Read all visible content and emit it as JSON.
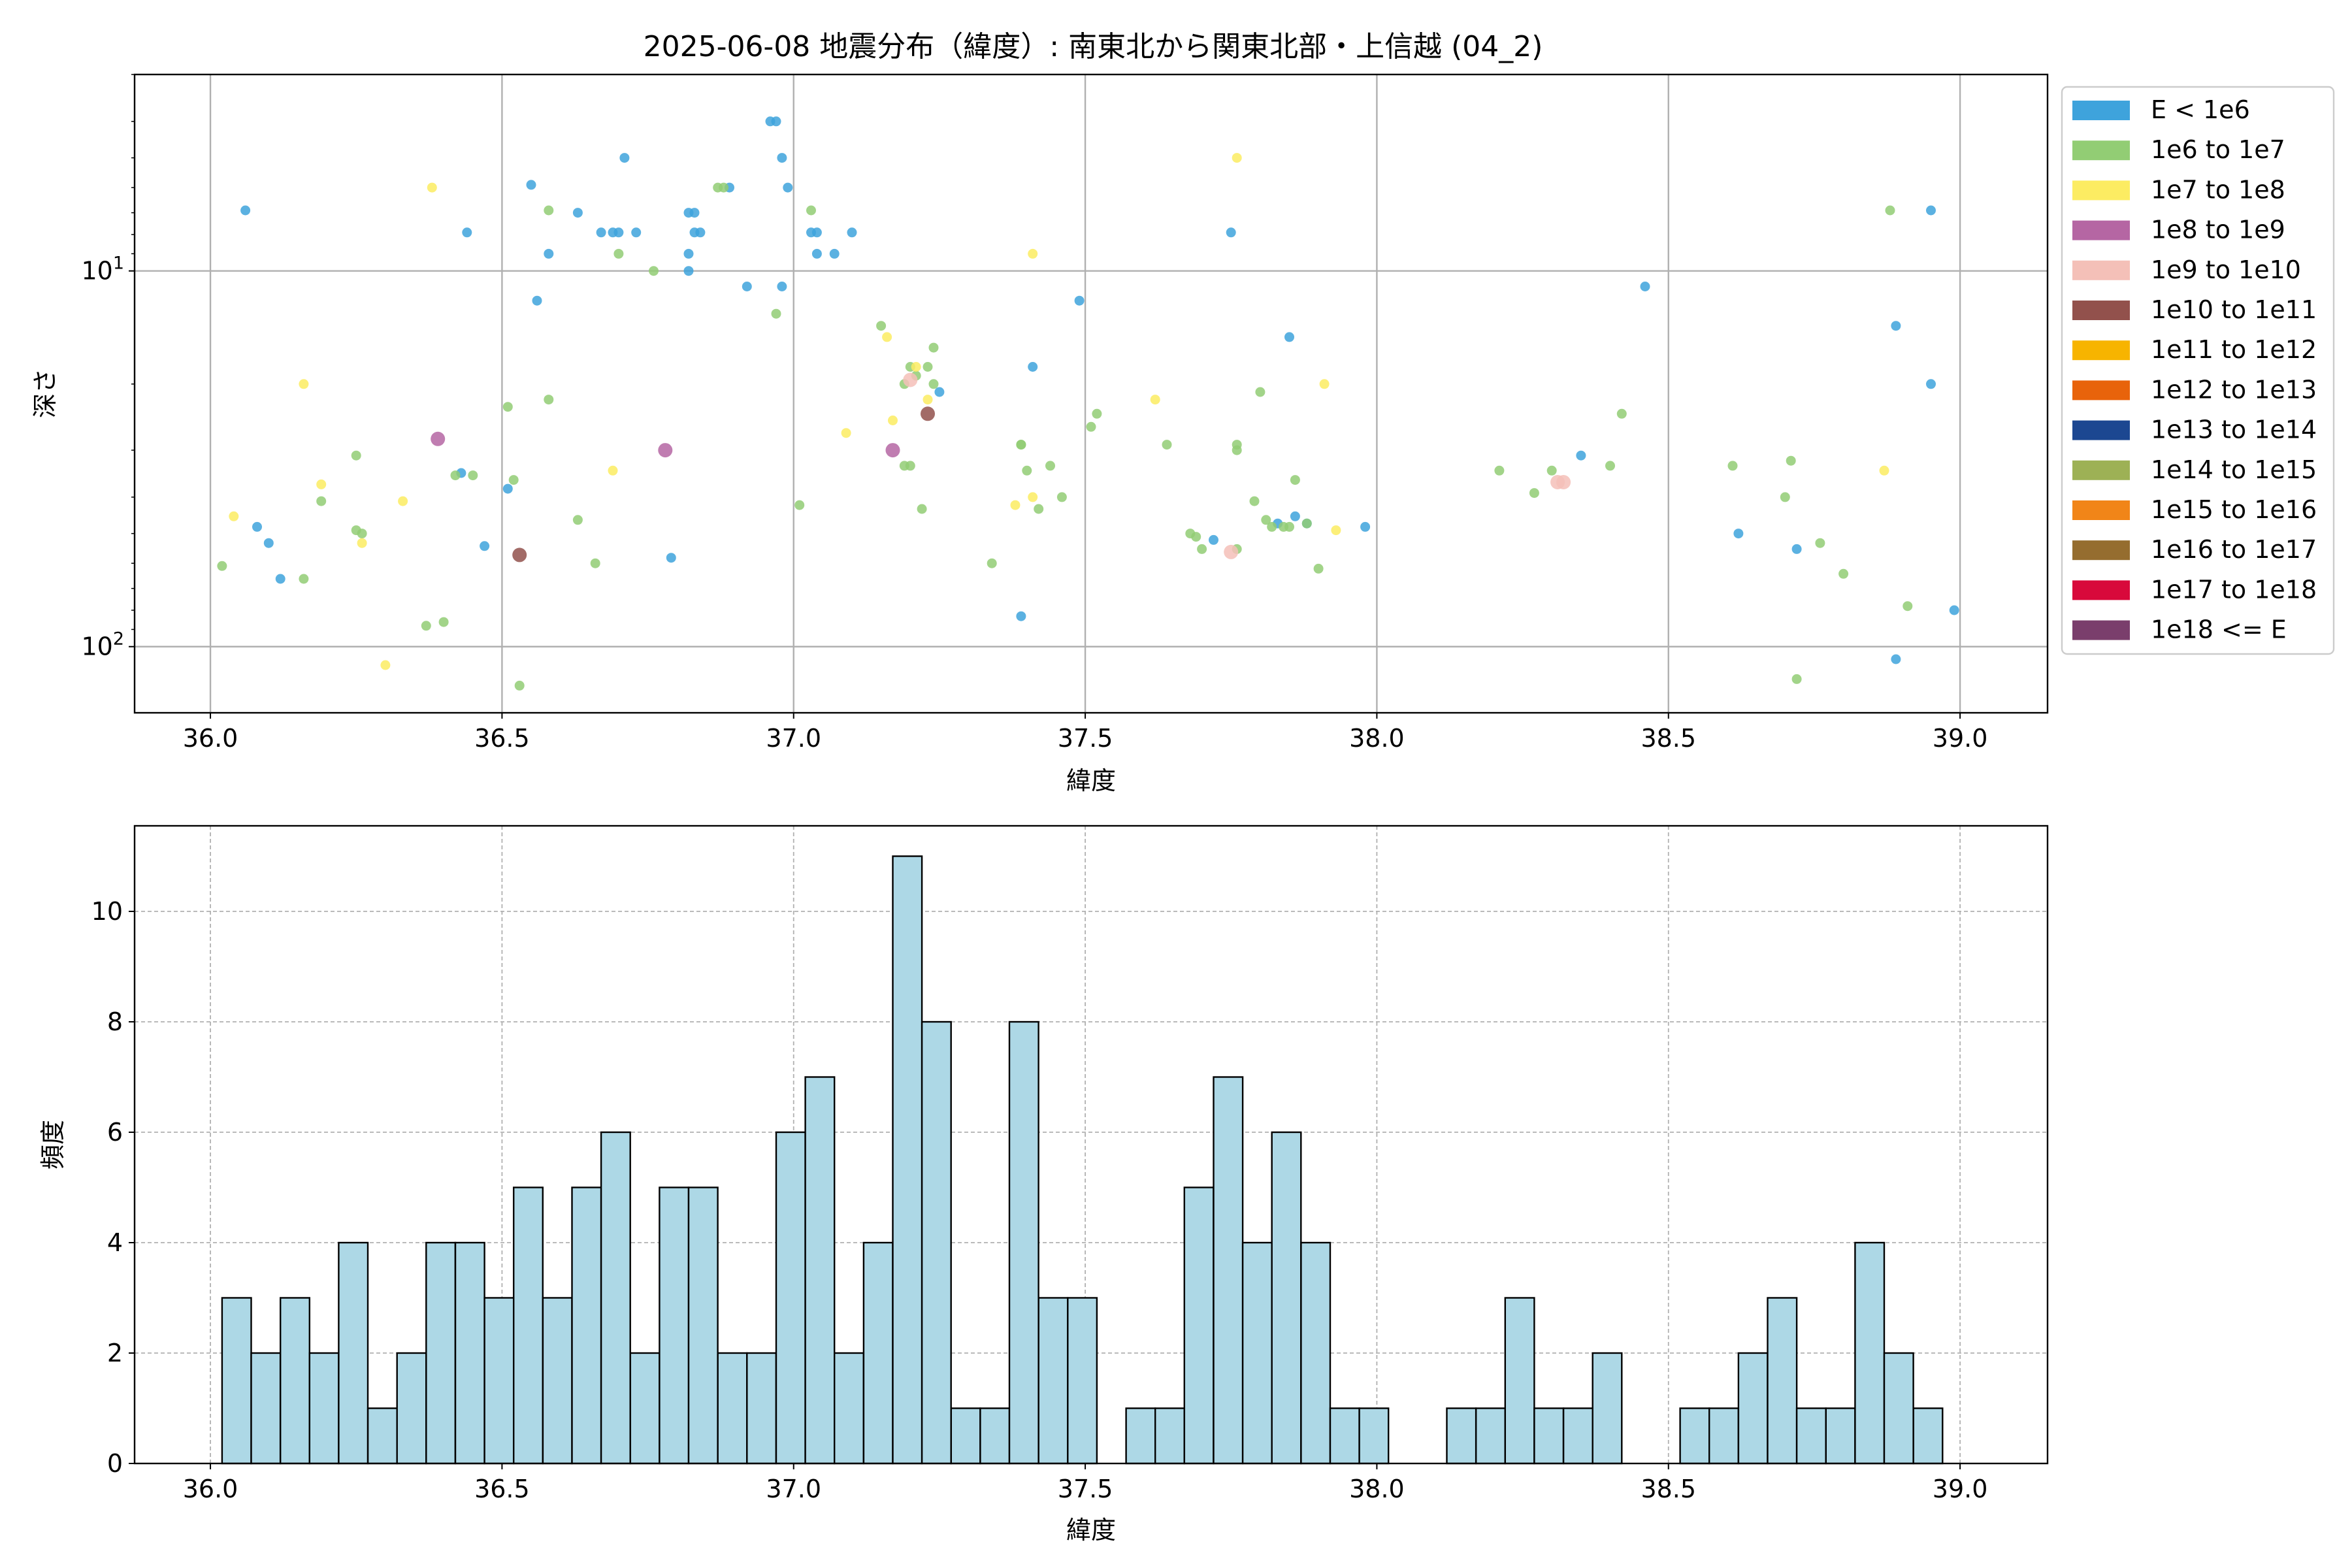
{
  "chart_data": [
    {
      "type": "scatter",
      "title": "2025-06-08 地震分布（緯度）: 南東北から関東北部・上信越 (04_2)",
      "xlabel": "緯度",
      "ylabel": "深さ",
      "xlim": [
        35.87,
        39.15
      ],
      "ylim": [
        150,
        3
      ],
      "yscale": "log",
      "y_inverted": true,
      "grid": true,
      "legend_placement": "outside-right",
      "xticks": [
        "36.0",
        "36.5",
        "37.0",
        "37.5",
        "38.0",
        "38.5",
        "39.0"
      ],
      "yticks": [
        {
          "value": 10,
          "base": "10",
          "exp": "1"
        },
        {
          "value": 100,
          "base": "10",
          "exp": "2"
        }
      ],
      "legend": [
        {
          "label": "E < 1e6",
          "color": "#3ea3dc"
        },
        {
          "label": "1e6 to 1e7",
          "color": "#92cd74"
        },
        {
          "label": "1e7 to 1e8",
          "color": "#fcec62"
        },
        {
          "label": "1e8 to 1e9",
          "color": "#b566a3"
        },
        {
          "label": "1e9 to 1e10",
          "color": "#f4c0b8"
        },
        {
          "label": "1e10 to 1e11",
          "color": "#92514c"
        },
        {
          "label": "1e11 to 1e12",
          "color": "#f7b400"
        },
        {
          "label": "1e12 to 1e13",
          "color": "#e8630b"
        },
        {
          "label": "1e13 to 1e14",
          "color": "#1c4791"
        },
        {
          "label": "1e14 to 1e15",
          "color": "#9db155"
        },
        {
          "label": "1e15 to 1e16",
          "color": "#f18518"
        },
        {
          "label": "1e16 to 1e17",
          "color": "#956d2f"
        },
        {
          "label": "1e17 to 1e18",
          "color": "#d8093b"
        },
        {
          "label": "1e18 <= E",
          "color": "#7a3e6c"
        }
      ],
      "series": [
        {
          "class": 0,
          "points": [
            [
              36.06,
              6.9
            ],
            [
              36.08,
              48
            ],
            [
              36.1,
              53
            ],
            [
              36.12,
              66
            ],
            [
              36.43,
              34.5
            ],
            [
              36.44,
              7.9
            ],
            [
              36.47,
              54
            ],
            [
              36.51,
              38
            ],
            [
              36.55,
              5.9
            ],
            [
              36.56,
              12
            ],
            [
              36.58,
              9
            ],
            [
              36.63,
              7
            ],
            [
              36.67,
              7.9
            ],
            [
              36.69,
              7.9
            ],
            [
              36.7,
              7.9
            ],
            [
              36.71,
              5
            ],
            [
              36.73,
              7.9
            ],
            [
              36.79,
              58
            ],
            [
              36.82,
              7
            ],
            [
              36.82,
              9
            ],
            [
              36.82,
              10
            ],
            [
              36.83,
              7.9
            ],
            [
              36.83,
              7
            ],
            [
              36.84,
              7.9
            ],
            [
              36.89,
              6
            ],
            [
              36.92,
              11
            ],
            [
              36.96,
              4
            ],
            [
              36.97,
              4
            ],
            [
              36.98,
              5
            ],
            [
              36.98,
              11
            ],
            [
              36.99,
              6
            ],
            [
              37.03,
              7.9
            ],
            [
              37.04,
              7.9
            ],
            [
              37.04,
              9
            ],
            [
              37.07,
              9
            ],
            [
              37.1,
              7.9
            ],
            [
              37.25,
              21
            ],
            [
              37.39,
              83
            ],
            [
              37.41,
              18
            ],
            [
              37.49,
              12
            ],
            [
              37.72,
              52
            ],
            [
              37.75,
              7.9
            ],
            [
              37.83,
              47
            ],
            [
              37.85,
              15
            ],
            [
              37.86,
              45
            ],
            [
              37.88,
              47
            ],
            [
              37.98,
              48
            ],
            [
              38.35,
              31
            ],
            [
              38.46,
              11
            ],
            [
              38.62,
              50
            ],
            [
              38.72,
              55
            ],
            [
              38.89,
              108
            ],
            [
              38.89,
              14
            ],
            [
              38.95,
              6.9
            ],
            [
              38.95,
              20
            ],
            [
              38.99,
              80
            ]
          ]
        },
        {
          "class": 1,
          "points": [
            [
              36.02,
              61
            ],
            [
              36.16,
              66
            ],
            [
              36.19,
              41
            ],
            [
              36.25,
              49
            ],
            [
              36.25,
              31
            ],
            [
              36.26,
              50
            ],
            [
              36.37,
              88
            ],
            [
              36.4,
              86
            ],
            [
              36.42,
              35
            ],
            [
              36.45,
              35
            ],
            [
              36.51,
              23
            ],
            [
              36.52,
              36
            ],
            [
              36.53,
              127
            ],
            [
              36.58,
              22
            ],
            [
              36.58,
              6.9
            ],
            [
              36.63,
              46
            ],
            [
              36.66,
              60
            ],
            [
              36.7,
              9
            ],
            [
              36.76,
              10
            ],
            [
              36.87,
              6
            ],
            [
              36.88,
              6
            ],
            [
              36.97,
              13
            ],
            [
              37.01,
              42
            ],
            [
              37.03,
              6.9
            ],
            [
              37.15,
              14
            ],
            [
              37.19,
              20
            ],
            [
              37.19,
              33
            ],
            [
              37.2,
              18
            ],
            [
              37.2,
              33
            ],
            [
              37.21,
              19
            ],
            [
              37.22,
              43
            ],
            [
              37.23,
              18
            ],
            [
              37.24,
              16
            ],
            [
              37.24,
              20
            ],
            [
              37.34,
              60
            ],
            [
              37.39,
              29
            ],
            [
              37.39,
              29
            ],
            [
              37.4,
              34
            ],
            [
              37.42,
              43
            ],
            [
              37.44,
              33
            ],
            [
              37.46,
              40
            ],
            [
              37.51,
              26
            ],
            [
              37.52,
              24
            ],
            [
              37.64,
              29
            ],
            [
              37.68,
              50
            ],
            [
              37.69,
              51
            ],
            [
              37.7,
              55
            ],
            [
              37.76,
              30
            ],
            [
              37.76,
              29
            ],
            [
              37.76,
              55
            ],
            [
              37.79,
              41
            ],
            [
              37.8,
              21
            ],
            [
              37.81,
              46
            ],
            [
              37.82,
              48
            ],
            [
              37.84,
              48
            ],
            [
              37.85,
              48
            ],
            [
              37.86,
              36
            ],
            [
              37.88,
              47
            ],
            [
              37.9,
              62
            ],
            [
              38.21,
              34
            ],
            [
              38.27,
              39
            ],
            [
              38.3,
              34
            ],
            [
              38.4,
              33
            ],
            [
              38.42,
              24
            ],
            [
              38.61,
              33
            ],
            [
              38.7,
              40
            ],
            [
              38.71,
              32
            ],
            [
              38.72,
              122
            ],
            [
              38.76,
              53
            ],
            [
              38.8,
              64
            ],
            [
              38.88,
              6.9
            ],
            [
              38.91,
              78
            ]
          ]
        },
        {
          "class": 2,
          "points": [
            [
              36.04,
              45
            ],
            [
              36.16,
              20
            ],
            [
              36.19,
              37
            ],
            [
              36.26,
              53
            ],
            [
              36.3,
              112
            ],
            [
              36.33,
              41
            ],
            [
              36.38,
              6
            ],
            [
              36.69,
              34
            ],
            [
              37.09,
              27
            ],
            [
              37.16,
              15
            ],
            [
              37.17,
              25
            ],
            [
              37.21,
              18
            ],
            [
              37.23,
              22
            ],
            [
              37.38,
              42
            ],
            [
              37.41,
              40
            ],
            [
              37.41,
              9
            ],
            [
              37.62,
              22
            ],
            [
              37.76,
              5
            ],
            [
              37.91,
              20
            ],
            [
              37.93,
              49
            ],
            [
              38.87,
              34
            ]
          ]
        },
        {
          "class": 3,
          "points": [
            [
              36.39,
              28
            ],
            [
              36.78,
              30
            ],
            [
              37.17,
              30
            ]
          ]
        },
        {
          "class": 4,
          "points": [
            [
              37.2,
              19.5
            ],
            [
              37.75,
              56
            ],
            [
              38.31,
              36.5
            ],
            [
              38.32,
              36.5
            ]
          ]
        },
        {
          "class": 5,
          "points": [
            [
              36.53,
              57
            ],
            [
              37.23,
              24
            ]
          ]
        }
      ]
    },
    {
      "type": "bar",
      "title": "",
      "xlabel": "緯度",
      "ylabel": "頻度",
      "xlim": [
        35.87,
        39.15
      ],
      "ylim": [
        0,
        11.55
      ],
      "grid": true,
      "bin_start": 36.02,
      "bin_width": 0.05,
      "xticks": [
        "36.0",
        "36.5",
        "37.0",
        "37.5",
        "38.0",
        "38.5",
        "39.0"
      ],
      "yticks": [
        "0",
        "2",
        "4",
        "6",
        "8",
        "10"
      ],
      "values": [
        3,
        2,
        3,
        2,
        4,
        1,
        2,
        4,
        4,
        3,
        5,
        3,
        5,
        6,
        2,
        5,
        5,
        2,
        2,
        6,
        7,
        2,
        4,
        11,
        8,
        1,
        1,
        8,
        3,
        3,
        0,
        1,
        1,
        5,
        7,
        4,
        6,
        4,
        1,
        1,
        0,
        0,
        1,
        1,
        3,
        1,
        1,
        2,
        0,
        0,
        1,
        1,
        2,
        3,
        1,
        1,
        4,
        2,
        1
      ],
      "bar_color": "#add8e6",
      "edge_color": "#000000"
    }
  ]
}
